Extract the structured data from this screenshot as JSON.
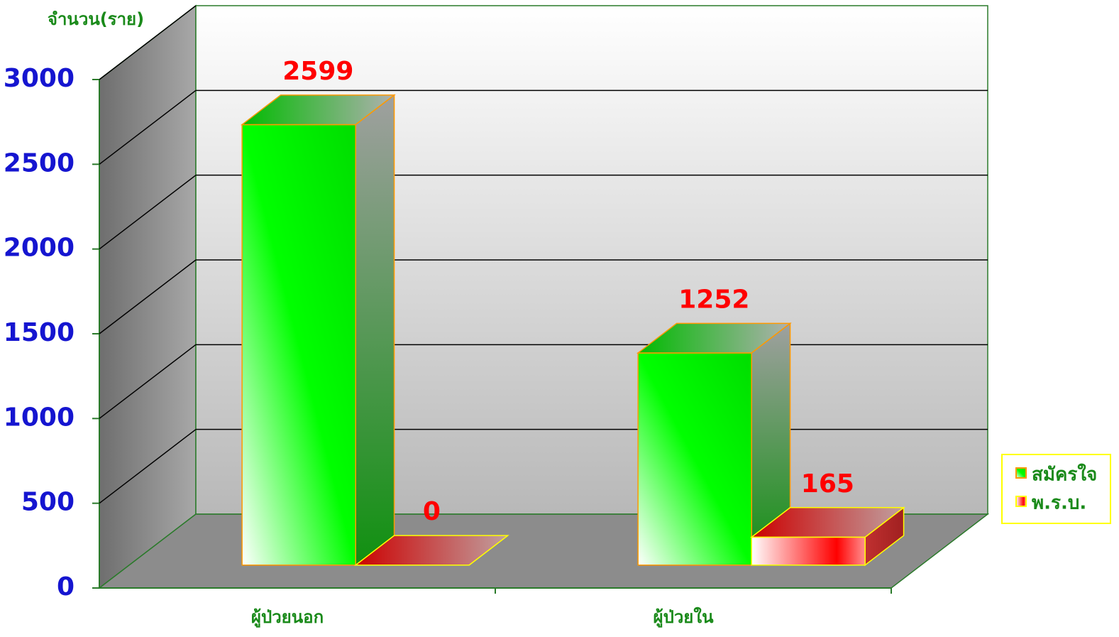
{
  "chart_data": {
    "type": "bar3d",
    "y_axis_label": "จำนวน(ราย)",
    "categories": [
      "ผู้ป่วยนอก",
      "ผู้ป่วยใน"
    ],
    "series": [
      {
        "name": "สมัครใจ",
        "color": "#00e000",
        "values": [
          2599,
          1252
        ]
      },
      {
        "name": "พ.ร.บ.",
        "color": "#e00000",
        "values": [
          0,
          165
        ]
      }
    ],
    "ylim": [
      0,
      3000
    ],
    "yticks": [
      0,
      500,
      1000,
      1500,
      2000,
      2500,
      3000
    ],
    "grid": true,
    "legend": "right"
  }
}
